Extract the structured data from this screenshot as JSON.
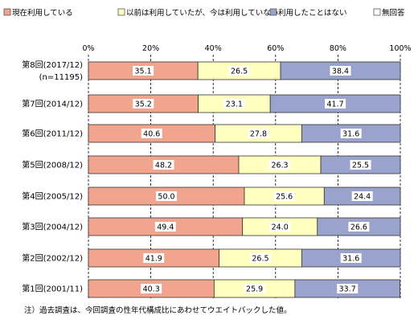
{
  "chart_data": {
    "type": "bar",
    "orientation": "horizontal",
    "stacked": true,
    "legend": {
      "placement": "top",
      "entries": [
        {
          "label": "現在利用している",
          "color": "#f2a58e"
        },
        {
          "label": "以前は利用していたが、今は利用していない",
          "color": "#ffffc0"
        },
        {
          "label": "利用したことはない",
          "color": "#9aa3cc"
        },
        {
          "label": "無回答",
          "color": "#ffffff"
        }
      ]
    },
    "x_ticks": [
      "0%",
      "20%",
      "40%",
      "60%",
      "80%",
      "100%"
    ],
    "xlim": [
      0,
      100
    ],
    "categories": [
      [
        "第8回(2017/12)",
        "(n=11195)"
      ],
      [
        "第7回(2014/12)"
      ],
      [
        "第6回(2011/12)"
      ],
      [
        "第5回(2008/12)"
      ],
      [
        "第4回(2005/12)"
      ],
      [
        "第3回(2004/12)"
      ],
      [
        "第2回(2002/12)"
      ],
      [
        "第1回(2001/11)"
      ]
    ],
    "series": [
      {
        "name": "現在利用している",
        "color": "#f2a58e",
        "values": [
          35.1,
          35.2,
          40.6,
          48.2,
          50.0,
          49.4,
          41.9,
          40.3
        ],
        "labels": [
          "35.1",
          "35.2",
          "40.6",
          "48.2",
          "50.0",
          "49.4",
          "41.9",
          "40.3"
        ]
      },
      {
        "name": "以前は利用していたが、今は利用していない",
        "color": "#ffffc0",
        "values": [
          26.5,
          23.1,
          27.8,
          26.3,
          25.6,
          24.0,
          26.5,
          25.9
        ],
        "labels": [
          "26.5",
          "23.1",
          "27.8",
          "26.3",
          "25.6",
          "24.0",
          "26.5",
          "25.9"
        ]
      },
      {
        "name": "利用したことはない",
        "color": "#9aa3cc",
        "values": [
          38.4,
          41.7,
          31.6,
          25.5,
          24.4,
          26.6,
          31.6,
          33.7
        ],
        "labels": [
          "38.4",
          "41.7",
          "31.6",
          "25.5",
          "24.4",
          "26.6",
          "31.6",
          "33.7"
        ]
      },
      {
        "name": "無回答",
        "color": "#ffffff",
        "values": [
          0,
          0,
          0,
          0,
          0,
          0,
          0,
          0
        ],
        "labels": [
          "",
          "",
          "",
          "",
          "",
          "",
          "",
          ""
        ]
      }
    ],
    "gridlines": true,
    "footnote": "注）過去調査は、今回調査の性年代構成比にあわせてウエイトバックした値。"
  }
}
